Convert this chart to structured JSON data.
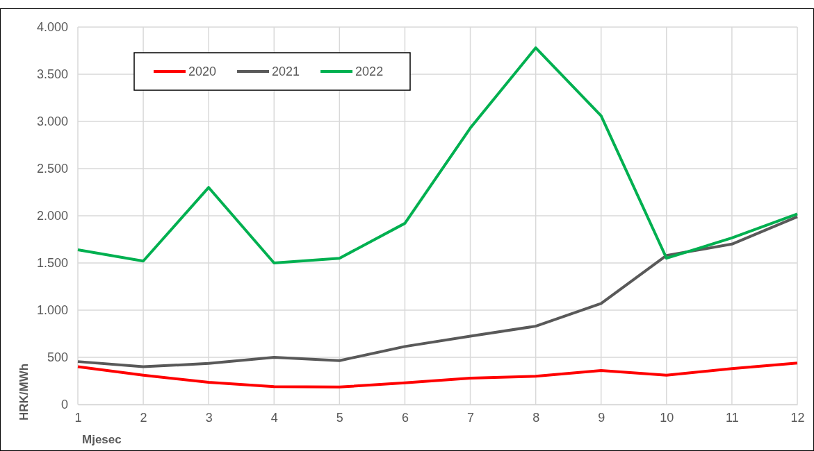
{
  "chart_data": {
    "type": "line",
    "xlabel": "Mjesec",
    "ylabel": "HRK/MWh",
    "x": [
      1,
      2,
      3,
      4,
      5,
      6,
      7,
      8,
      9,
      10,
      11,
      12
    ],
    "xlim": [
      1,
      12
    ],
    "xticks": [
      1,
      2,
      3,
      4,
      5,
      6,
      7,
      8,
      9,
      10,
      11,
      12
    ],
    "ylim": [
      0,
      4000
    ],
    "yticks": [
      0,
      {
        "value": 500,
        "label": "500"
      },
      {
        "value": 1000,
        "label": "1.000"
      },
      {
        "value": 1500,
        "label": "1.500"
      },
      {
        "value": 2000,
        "label": "2.000"
      },
      {
        "value": 2500,
        "label": "2.500"
      },
      {
        "value": 3000,
        "label": "3.000"
      },
      {
        "value": 3500,
        "label": "3.500"
      },
      {
        "value": 4000,
        "label": "4.000"
      }
    ],
    "grid": true,
    "legend": "top left",
    "marker": "none",
    "line_style": "solid",
    "series": [
      {
        "name": "2020",
        "color": "#ff0000",
        "values": [
          400,
          310,
          235,
          190,
          185,
          230,
          280,
          300,
          360,
          310,
          380,
          440
        ]
      },
      {
        "name": "2021",
        "color": "#595959",
        "values": [
          455,
          400,
          435,
          500,
          465,
          615,
          725,
          830,
          1070,
          1580,
          1700,
          1990
        ]
      },
      {
        "name": "2022",
        "color": "#00b050",
        "values": [
          1640,
          1520,
          2300,
          1500,
          1550,
          1920,
          2930,
          3780,
          3060,
          1550,
          1765,
          2020
        ]
      }
    ]
  }
}
